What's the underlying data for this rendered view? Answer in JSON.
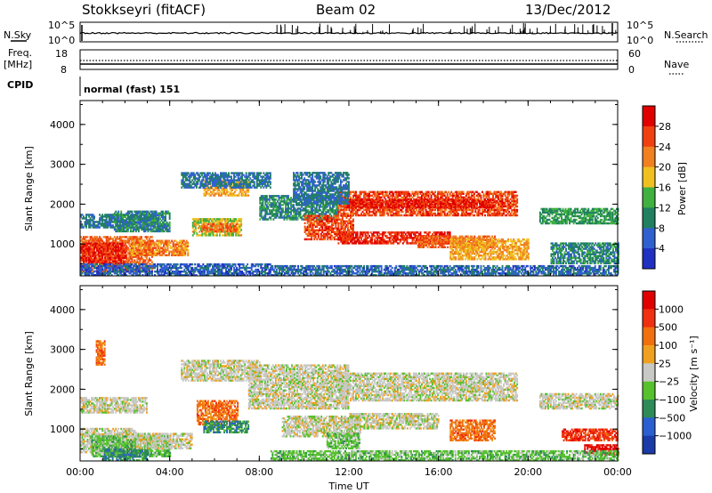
{
  "header": {
    "station": "Stokkseyri (fitACF)",
    "beam": "Beam 02",
    "date": "13/Dec/2012"
  },
  "noise_panel": {
    "left_label": "N.Sky",
    "right_label": "N.Search",
    "y_top_label": "10^5",
    "y_bottom_label": "10^0"
  },
  "freq_panel": {
    "left_label_1": "Freq.",
    "left_label_2": "[MHz]",
    "left_top": "18",
    "left_bottom": "8",
    "right_label": "Nave",
    "right_top": "60",
    "right_bottom": "0"
  },
  "cpid_panel": {
    "label": "CPID",
    "mode": "normal (fast) 151"
  },
  "colors": {
    "power": [
      "#2030c0",
      "#3060d0",
      "#208060",
      "#40b040",
      "#f0c020",
      "#f08020",
      "#f04010",
      "#e00000"
    ],
    "velocity": [
      "#1a3aa8",
      "#2b5ed0",
      "#2e8b57",
      "#56c12d",
      "#c8c8c4",
      "#f0a020",
      "#f07010",
      "#f03010",
      "#e00000"
    ]
  },
  "chart_data": [
    {
      "type": "heatmap",
      "name": "power",
      "ylabel": "Slant Range [km]",
      "ylim": [
        200,
        4600
      ],
      "yticks": [
        "1000",
        "2000",
        "3000",
        "4000"
      ],
      "xlim_hours": [
        0,
        24
      ],
      "xticks": [
        "00:00",
        "04:00",
        "08:00",
        "12:00",
        "16:00",
        "20:00",
        "00:00"
      ],
      "colorbar": {
        "label": "Power [dB]",
        "ticks": [
          "4",
          "8",
          "12",
          "16",
          "20",
          "24",
          "28"
        ],
        "range": [
          0,
          32
        ]
      },
      "blobs": [
        {
          "t0": 0.0,
          "t1": 3.2,
          "r0": 300,
          "r1": 1200,
          "v": 24
        },
        {
          "t0": 0.0,
          "t1": 2.0,
          "r0": 500,
          "r1": 1000,
          "v": 28
        },
        {
          "t0": 0.0,
          "t1": 3.5,
          "r0": 1400,
          "r1": 1750,
          "v": 8
        },
        {
          "t0": 1.5,
          "t1": 4.0,
          "r0": 1300,
          "r1": 1800,
          "v": 10
        },
        {
          "t0": 0.0,
          "t1": 8.5,
          "r0": 200,
          "r1": 500,
          "v": 6
        },
        {
          "t0": 2.2,
          "t1": 4.8,
          "r0": 700,
          "r1": 1100,
          "v": 22
        },
        {
          "t0": 5.0,
          "t1": 7.2,
          "r0": 1200,
          "r1": 1650,
          "v": 17
        },
        {
          "t0": 5.4,
          "t1": 7.0,
          "r0": 1300,
          "r1": 1500,
          "v": 24
        },
        {
          "t0": 5.5,
          "t1": 7.5,
          "r0": 2200,
          "r1": 2600,
          "v": 20
        },
        {
          "t0": 4.5,
          "t1": 8.5,
          "r0": 2400,
          "r1": 2800,
          "v": 8
        },
        {
          "t0": 8.0,
          "t1": 11.5,
          "r0": 1600,
          "r1": 2200,
          "v": 10
        },
        {
          "t0": 10.0,
          "t1": 12.2,
          "r0": 1100,
          "r1": 1700,
          "v": 26
        },
        {
          "t0": 11.5,
          "t1": 19.5,
          "r0": 1700,
          "r1": 2300,
          "v": 26
        },
        {
          "t0": 11.8,
          "t1": 18.5,
          "r0": 1900,
          "r1": 2100,
          "v": 29
        },
        {
          "t0": 11.5,
          "t1": 16.5,
          "r0": 1000,
          "r1": 1300,
          "v": 28
        },
        {
          "t0": 15.0,
          "t1": 18.5,
          "r0": 900,
          "r1": 1200,
          "v": 24
        },
        {
          "t0": 16.5,
          "t1": 20.0,
          "r0": 600,
          "r1": 1100,
          "v": 20
        },
        {
          "t0": 9.5,
          "t1": 12.0,
          "r0": 2000,
          "r1": 2800,
          "v": 8
        },
        {
          "t0": 20.5,
          "t1": 24.0,
          "r0": 1500,
          "r1": 1900,
          "v": 12
        },
        {
          "t0": 21.0,
          "t1": 24.0,
          "r0": 500,
          "r1": 1000,
          "v": 10
        },
        {
          "t0": 8.5,
          "t1": 24.0,
          "r0": 200,
          "r1": 450,
          "v": 7
        }
      ]
    },
    {
      "type": "heatmap",
      "name": "velocity",
      "ylabel": "Slant Range [km]",
      "ylim": [
        200,
        4600
      ],
      "yticks": [
        "1000",
        "2000",
        "3000",
        "4000"
      ],
      "xlim_hours": [
        0,
        24
      ],
      "xticks": [
        "00:00",
        "04:00",
        "08:00",
        "12:00",
        "16:00",
        "20:00",
        "00:00"
      ],
      "xlabel": "Time UT",
      "colorbar": {
        "label": "Velocity [m s⁻¹]",
        "ticks": [
          "1000",
          "500",
          "100",
          "25",
          "−25",
          "−100",
          "−500",
          "−1000"
        ]
      },
      "blobs": [
        {
          "t0": 0.0,
          "t1": 3.0,
          "r0": 1400,
          "r1": 1800,
          "v": 4
        },
        {
          "t0": 0.0,
          "t1": 2.5,
          "r0": 400,
          "r1": 1000,
          "v": 4
        },
        {
          "t0": 0.5,
          "t1": 4.0,
          "r0": 300,
          "r1": 800,
          "v": 3
        },
        {
          "t0": 1.0,
          "t1": 3.0,
          "r0": 200,
          "r1": 500,
          "v": 2
        },
        {
          "t0": 2.5,
          "t1": 5.0,
          "r0": 500,
          "r1": 900,
          "v": 4
        },
        {
          "t0": 5.2,
          "t1": 7.0,
          "r0": 1100,
          "r1": 1700,
          "v": 6
        },
        {
          "t0": 5.5,
          "t1": 7.5,
          "r0": 900,
          "r1": 1200,
          "v": 2
        },
        {
          "t0": 4.5,
          "t1": 8.0,
          "r0": 2200,
          "r1": 2700,
          "v": 4
        },
        {
          "t0": 7.5,
          "t1": 12.0,
          "r0": 1500,
          "r1": 2600,
          "v": 4
        },
        {
          "t0": 9.0,
          "t1": 12.5,
          "r0": 800,
          "r1": 1300,
          "v": 4
        },
        {
          "t0": 11.5,
          "t1": 19.5,
          "r0": 1700,
          "r1": 2400,
          "v": 4
        },
        {
          "t0": 12.0,
          "t1": 16.0,
          "r0": 1000,
          "r1": 1400,
          "v": 4
        },
        {
          "t0": 11.0,
          "t1": 12.5,
          "r0": 500,
          "r1": 900,
          "v": 3
        },
        {
          "t0": 16.5,
          "t1": 18.5,
          "r0": 700,
          "r1": 1200,
          "v": 6
        },
        {
          "t0": 20.5,
          "t1": 24.0,
          "r0": 1500,
          "r1": 1900,
          "v": 4
        },
        {
          "t0": 21.5,
          "t1": 24.0,
          "r0": 700,
          "r1": 1000,
          "v": 7
        },
        {
          "t0": 22.5,
          "t1": 24.0,
          "r0": 350,
          "r1": 600,
          "v": 8
        },
        {
          "t0": 8.5,
          "t1": 24.0,
          "r0": 200,
          "r1": 450,
          "v": 3
        },
        {
          "t0": 0.7,
          "t1": 1.1,
          "r0": 2600,
          "r1": 3200,
          "v": 6
        }
      ]
    }
  ]
}
